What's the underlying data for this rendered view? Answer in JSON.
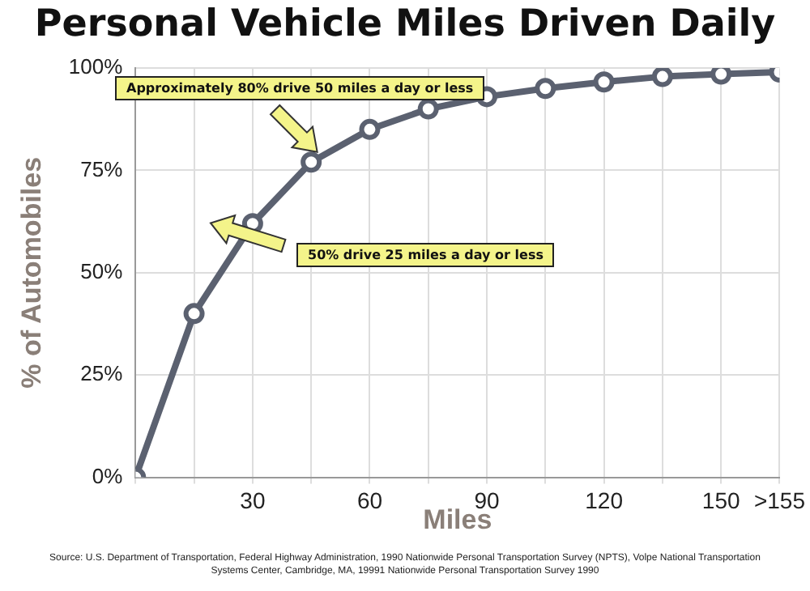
{
  "chart_data": {
    "type": "line",
    "title": "Personal Vehicle Miles Driven Daily",
    "xlabel": "Miles",
    "ylabel": "% of Automobiles",
    "x": [
      0,
      15,
      30,
      45,
      60,
      75,
      90,
      105,
      120,
      135,
      150,
      165
    ],
    "series": [
      {
        "color": "#5b6170",
        "values": [
          0,
          40,
          62,
          77,
          85,
          90,
          93,
          95,
          96.6,
          97.9,
          98.5,
          99
        ]
      }
    ],
    "xlim": [
      0,
      165
    ],
    "xticks": [
      {
        "value": 0,
        "label": null
      },
      {
        "value": 15,
        "label": null
      },
      30,
      {
        "value": 45,
        "label": null
      },
      60,
      {
        "value": 75,
        "label": null
      },
      90,
      {
        "value": 105,
        "label": null
      },
      120,
      {
        "value": 135,
        "label": null
      },
      150,
      {
        "value": 165,
        "label": ">155"
      }
    ],
    "ylim": [
      0,
      100
    ],
    "yticks": [
      {
        "value": 0,
        "label": "0%"
      },
      {
        "value": 25,
        "label": "25%"
      },
      {
        "value": 50,
        "label": "50%"
      },
      {
        "value": 75,
        "label": "75%"
      },
      {
        "value": 100,
        "label": "100%"
      }
    ],
    "grid": true,
    "legend": false,
    "marker": "circle",
    "line_style": "solid",
    "annotations": [
      "Approximately 80% drive 50 miles a day or less",
      "50% drive 25 miles a day or less",
      "Source: U.S. Department of Transportation, Federal Highway Administration, 1990 Nationwide Personal Transportation Survey (NPTS), Volpe National Transportation Systems Center, Cambridge, MA, 19991  Nationwide Personal Transportation Survey 1990"
    ]
  }
}
